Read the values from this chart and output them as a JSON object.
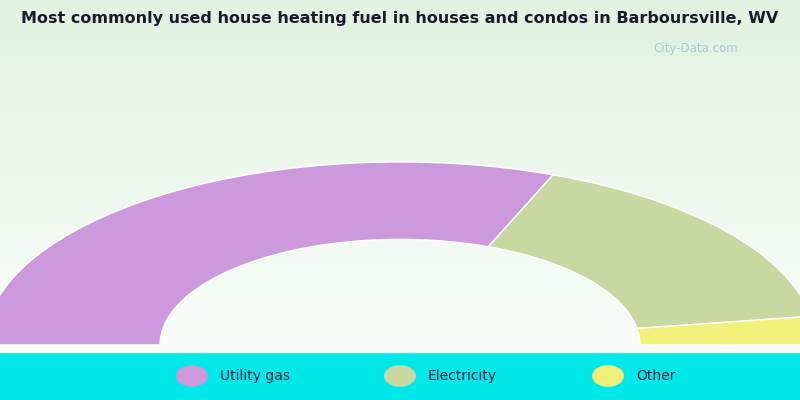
{
  "title": "Most commonly used house heating fuel in houses and condos in Barboursville, WV",
  "title_fontsize": 11.5,
  "title_color": "#1a1a2e",
  "categories": [
    "Utility gas",
    "Electricity",
    "Other"
  ],
  "values": [
    62,
    33,
    5
  ],
  "colors": [
    "#cc99dd",
    "#c8d8a0",
    "#f0f07a"
  ],
  "legend_colors": [
    "#cc99dd",
    "#c8d8a0",
    "#f0f07a"
  ],
  "bg_color": "#00e8e8",
  "watermark": "City-Data.com"
}
